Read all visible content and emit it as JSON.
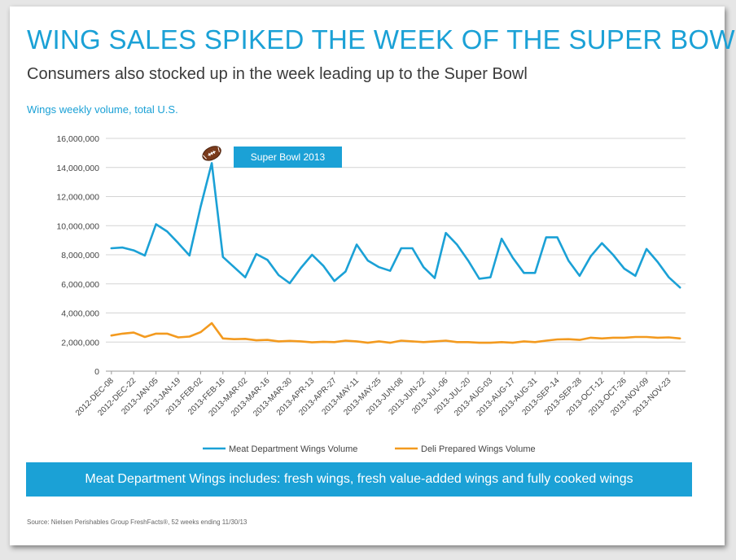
{
  "page": {
    "title": "WING SALES SPIKED THE WEEK OF THE SUPER BOWL",
    "subtitle": "Consumers also stocked up in the week leading up to the Super Bowl",
    "axis_caption": "Wings weekly volume, total U.S.",
    "banner": "Meat Department Wings includes: fresh wings, fresh value-added wings and fully cooked wings",
    "source": "Source: Nielsen Perishables Group FreshFacts®, 52 weeks ending 11/30/13"
  },
  "colors": {
    "accent": "#1ba1d6",
    "meat": "#1ba1d6",
    "deli": "#f39a1f"
  },
  "chart_data": {
    "type": "line",
    "x_tick_labels": [
      "2012-DEC-08",
      "2012-DEC-22",
      "2013-JAN-05",
      "2013-JAN-19",
      "2013-FEB-02",
      "2013-FEB-16",
      "2013-MAR-02",
      "2013-MAR-16",
      "2013-MAR-30",
      "2013-APR-13",
      "2013-APR-27",
      "2013-MAY-11",
      "2013-MAY-25",
      "2013-JUN-08",
      "2013-JUN-22",
      "2013-JUL-06",
      "2013-JUL-20",
      "2013-AUG-03",
      "2013-AUG-17",
      "2013-AUG-31",
      "2013-SEP-14",
      "2013-SEP-28",
      "2013-OCT-12",
      "2013-OCT-26",
      "2013-NOV-09",
      "2013-NOV-23"
    ],
    "y_ticks": [
      0,
      2000000,
      4000000,
      6000000,
      8000000,
      10000000,
      12000000,
      14000000,
      16000000
    ],
    "y_tick_labels": [
      "0",
      "2,000,000",
      "4,000,000",
      "6,000,000",
      "8,000,000",
      "10,000,000",
      "12,000,000",
      "14,000,000",
      "16,000,000"
    ],
    "ylim": [
      0,
      16000000
    ],
    "grid": true,
    "legend_position": "bottom",
    "series": [
      {
        "name": "Meat Department Wings Volume",
        "values": [
          8450000,
          8500000,
          8300000,
          7950000,
          10100000,
          9600000,
          8800000,
          7950000,
          11300000,
          14300000,
          7850000,
          7150000,
          6450000,
          8050000,
          7650000,
          6600000,
          6050000,
          7100000,
          8000000,
          7250000,
          6200000,
          6850000,
          8700000,
          7600000,
          7150000,
          6900000,
          8450000,
          8450000,
          7150000,
          6400000,
          9500000,
          8700000,
          7600000,
          6350000,
          6450000,
          9100000,
          7800000,
          6750000,
          6750000,
          9200000,
          9200000,
          7600000,
          6550000,
          7900000,
          8800000,
          8000000,
          7050000,
          6550000,
          8400000,
          7500000,
          6450000,
          5750000
        ]
      },
      {
        "name": "Deli Prepared Wings Volume",
        "values": [
          2450000,
          2580000,
          2650000,
          2350000,
          2580000,
          2580000,
          2320000,
          2380000,
          2680000,
          3300000,
          2250000,
          2200000,
          2220000,
          2120000,
          2150000,
          2050000,
          2080000,
          2050000,
          1980000,
          2020000,
          2000000,
          2100000,
          2050000,
          1950000,
          2050000,
          1950000,
          2100000,
          2050000,
          2000000,
          2050000,
          2100000,
          2000000,
          2000000,
          1950000,
          1950000,
          2000000,
          1950000,
          2050000,
          2000000,
          2100000,
          2180000,
          2200000,
          2150000,
          2300000,
          2250000,
          2300000,
          2300000,
          2350000,
          2350000,
          2300000,
          2320000,
          2250000
        ]
      }
    ],
    "annotation": {
      "text": "Super Bowl 2013",
      "point_index": 9,
      "icon": "football-icon"
    }
  }
}
